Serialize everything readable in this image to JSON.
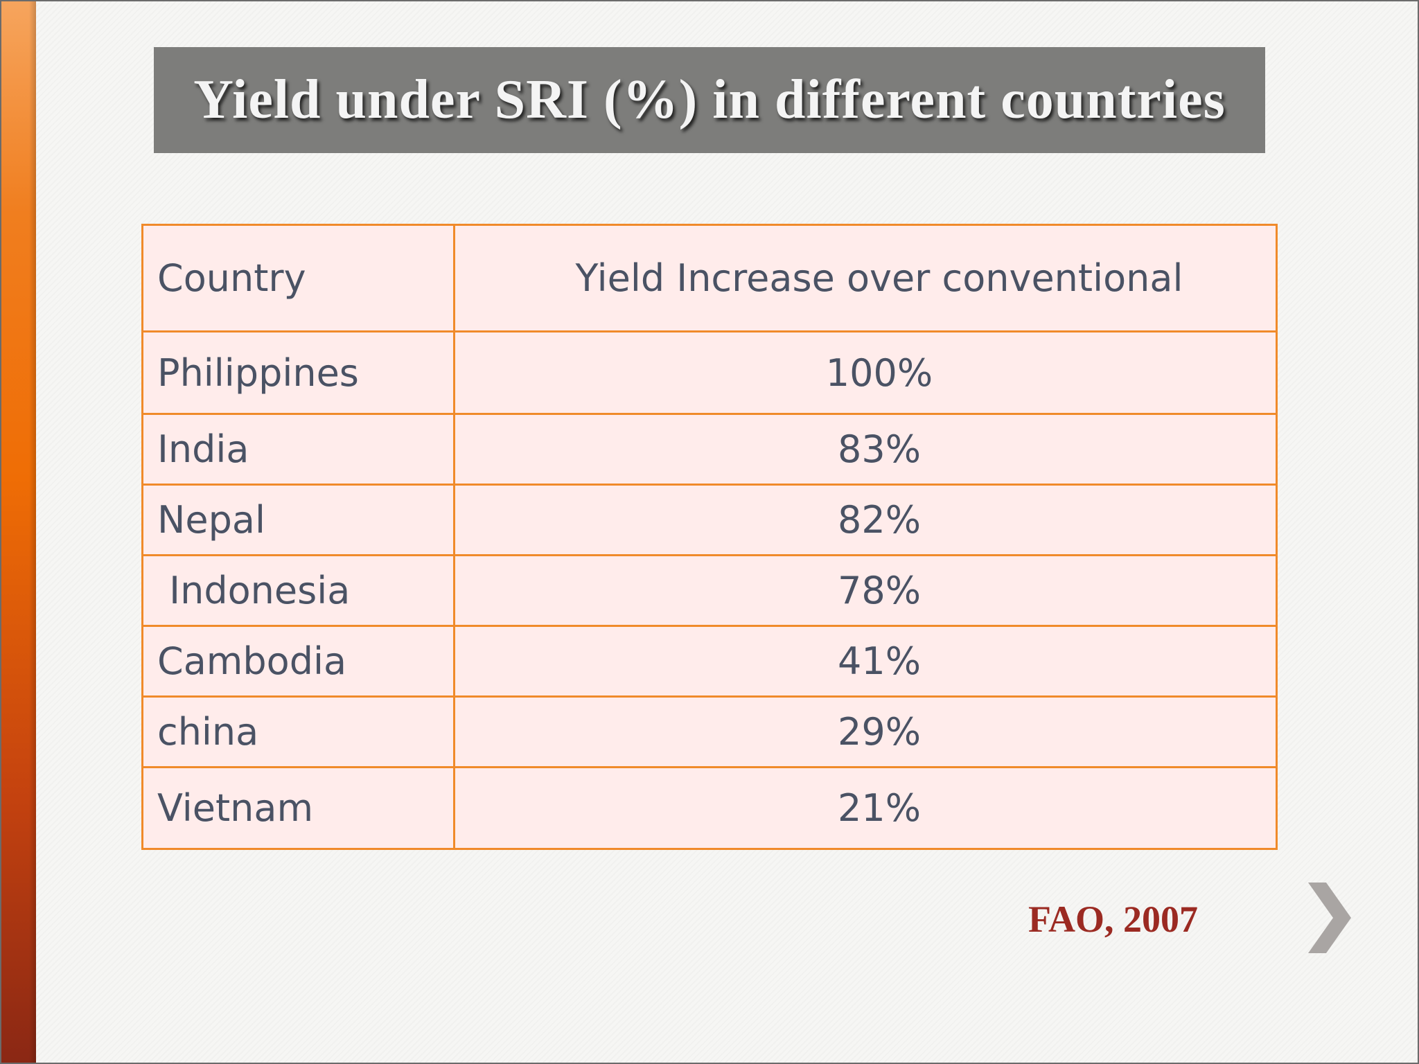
{
  "slide": {
    "title": "Yield under SRI (%) in different countries",
    "table": {
      "headers": [
        "Country",
        "Yield Increase over conventional"
      ],
      "rows": [
        {
          "country": "Philippines",
          "value": "100%"
        },
        {
          "country": "India",
          "value": "83%"
        },
        {
          "country": "Nepal",
          "value": "82%"
        },
        {
          "country": " Indonesia",
          "value": "78%"
        },
        {
          "country": "Cambodia",
          "value": "41%"
        },
        {
          "country": "china",
          "value": "29%"
        },
        {
          "country": "Vietnam",
          "value": "21%"
        }
      ]
    },
    "source": "FAO, 2007",
    "next_icon": "chevron-right-icon"
  },
  "colors": {
    "accent": "#ef6d05",
    "title_bar": "#7d7d7b",
    "table_border": "#f08a2a",
    "table_fill": "#ffeceb",
    "source_text": "#9b2a22"
  }
}
